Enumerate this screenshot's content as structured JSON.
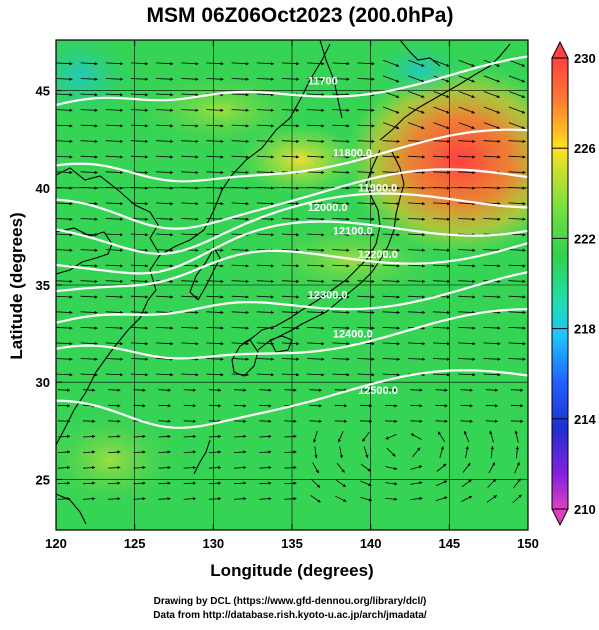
{
  "title": "MSM 06Z06Oct2023 (200.0hPa)",
  "axes": {
    "xlabel": "Longitude (degrees)",
    "ylabel": "Latitude  (degrees)",
    "xlim": [
      120,
      150
    ],
    "ylim": [
      22.4,
      47.6
    ],
    "xticks": [
      "120",
      "125",
      "130",
      "135",
      "140",
      "145",
      "150"
    ],
    "yticks": [
      "25",
      "30",
      "35",
      "40",
      "45"
    ],
    "ytick_values": [
      25,
      30,
      35,
      40,
      45
    ]
  },
  "colorbar": {
    "min": 210,
    "max": 230,
    "labels": [
      "230",
      "226",
      "222",
      "218",
      "214",
      "210"
    ],
    "label_values": [
      230,
      226,
      222,
      218,
      214,
      210
    ],
    "stops": [
      "#e040c0",
      "#8020e0",
      "#2030d0",
      "#2060ff",
      "#20c0ff",
      "#20e0b0",
      "#30d050",
      "#60e040",
      "#b0e030",
      "#ffe020",
      "#ff8030",
      "#ff4040"
    ]
  },
  "contours": [
    {
      "label": "11700",
      "lat_at_lon140": 45.5
    },
    {
      "label": "11800.0",
      "lat_at_lon140": 41.8
    },
    {
      "label": "11900.0",
      "lat_at_lon140": 40.0
    },
    {
      "label": "12000.0",
      "lat_at_lon140": 39.0
    },
    {
      "label": "12100.0",
      "lat_at_lon140": 37.8
    },
    {
      "label": "12200.0",
      "lat_at_lon140": 36.6
    },
    {
      "label": "12300.0",
      "lat_at_lon140": 34.5
    },
    {
      "label": "12400.0",
      "lat_at_lon140": 32.5
    },
    {
      "label": "12500.0",
      "lat_at_lon140": 29.6
    }
  ],
  "footer": {
    "line1": "Drawing by DCL (https://www.gfd-dennou.org/library/dcl/)",
    "line2": "Data from http://database.rish.kyoto-u.ac.jp/arch/jmadata/"
  },
  "colors": {
    "contour": "#ffffff",
    "coast": "#000000",
    "field_base": "#30d050",
    "warm": "#ff5030",
    "cool": "#20c0c0"
  }
}
